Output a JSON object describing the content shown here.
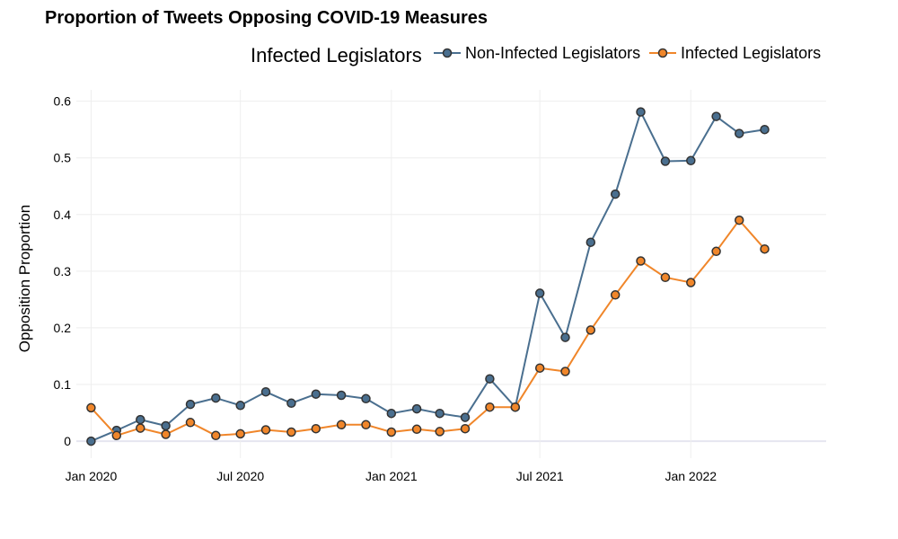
{
  "chart_data": {
    "type": "line",
    "title": "Proportion of Tweets Opposing COVID-19 Measures",
    "xlabel": "",
    "ylabel": "Opposition Proportion",
    "legend_title": "Infected Legislators",
    "legend_position": "top-right",
    "grid": true,
    "ylim": [
      -0.03,
      0.62
    ],
    "xlim": [
      "2019-12-14",
      "2022-06-15"
    ],
    "y_ticks": [
      0,
      0.1,
      0.2,
      0.3,
      0.4,
      0.5,
      0.6
    ],
    "y_tick_labels": [
      "0",
      "0.1",
      "0.2",
      "0.3",
      "0.4",
      "0.5",
      "0.6"
    ],
    "x_ticks": [
      "2020-01-01",
      "2020-07-01",
      "2021-01-01",
      "2021-07-01",
      "2022-01-01"
    ],
    "x_tick_labels": [
      "Jan 2020",
      "Jul 2020",
      "Jan 2021",
      "Jul 2021",
      "Jan 2022"
    ],
    "x": [
      "2020-01-01",
      "2020-02-01",
      "2020-03-01",
      "2020-04-01",
      "2020-05-01",
      "2020-06-01",
      "2020-07-01",
      "2020-08-01",
      "2020-09-01",
      "2020-10-01",
      "2020-11-01",
      "2020-12-01",
      "2021-01-01",
      "2021-02-01",
      "2021-03-01",
      "2021-04-01",
      "2021-05-01",
      "2021-06-01",
      "2021-07-01",
      "2021-08-01",
      "2021-09-01",
      "2021-10-01",
      "2021-11-01",
      "2021-12-01",
      "2022-01-01",
      "2022-02-01",
      "2022-03-01",
      "2022-04-01"
    ],
    "series": [
      {
        "name": "Non-Infected Legislators",
        "color": "#4a6f8f",
        "values": [
          0.0,
          0.019,
          0.038,
          0.027,
          0.065,
          0.076,
          0.063,
          0.087,
          0.067,
          0.083,
          0.081,
          0.075,
          0.049,
          0.057,
          0.049,
          0.042,
          0.11,
          0.06,
          0.261,
          0.183,
          0.351,
          0.436,
          0.581,
          0.494,
          0.495,
          0.573,
          0.543,
          0.55
        ]
      },
      {
        "name": "Infected Legislators",
        "color": "#f0862a",
        "values": [
          0.059,
          0.01,
          0.023,
          0.012,
          0.033,
          0.01,
          0.013,
          0.02,
          0.016,
          0.022,
          0.029,
          0.029,
          0.016,
          0.021,
          0.017,
          0.022,
          0.06,
          0.06,
          0.129,
          0.123,
          0.196,
          0.258,
          0.318,
          0.289,
          0.28,
          0.335,
          0.39,
          0.339
        ]
      }
    ]
  }
}
